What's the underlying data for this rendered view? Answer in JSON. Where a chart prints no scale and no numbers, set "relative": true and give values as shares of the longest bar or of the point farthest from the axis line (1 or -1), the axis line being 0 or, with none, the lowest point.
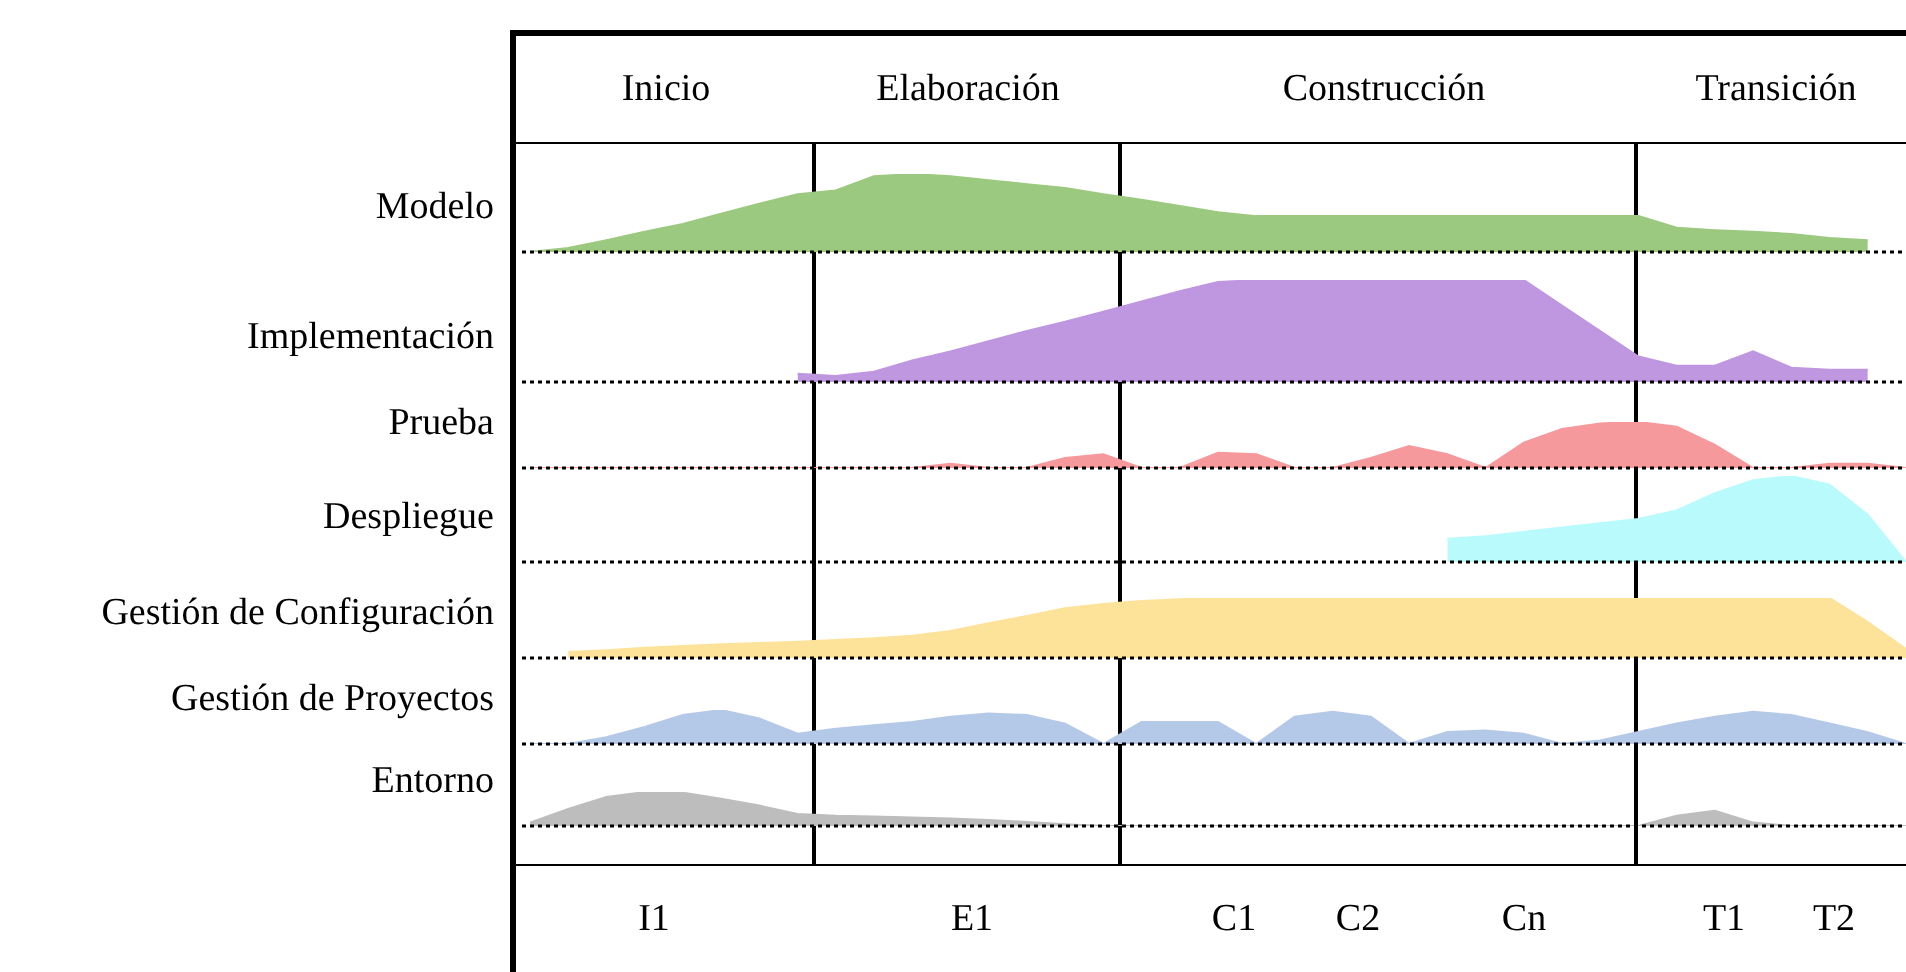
{
  "chart_data": [
    {
      "type": "other",
      "annotations": [
        "Inicio",
        "Elaboración",
        "Construcción",
        "Transición"
      ]
    },
    {
      "type": "area",
      "ylabel": "Modelo",
      "relative": true,
      "color": "#9bc97f",
      "categories": [
        null,
        null,
        null,
        null,
        null,
        null,
        null,
        null,
        null,
        null,
        null,
        null,
        null,
        null,
        null,
        null,
        null,
        null,
        null,
        null,
        null,
        null,
        null,
        null,
        null,
        null,
        null,
        null,
        null,
        null,
        null,
        null,
        null,
        null,
        null,
        null,
        null
      ],
      "values": [
        0,
        0.05,
        0.15,
        0.26,
        0.36,
        0.49,
        0.62,
        0.74,
        0.79,
        0.97,
        1,
        0.97,
        0.92,
        0.87,
        0.82,
        0.74,
        0.67,
        0.59,
        0.51,
        0.46,
        0.46,
        0.46,
        0.46,
        0.46,
        0.46,
        0.46,
        0.46,
        0.46,
        0.46,
        0.46,
        0.31,
        0.28,
        0.26,
        0.23,
        0.18,
        0.15,
        null
      ]
    },
    {
      "type": "area",
      "ylabel": "Implementación",
      "relative": true,
      "color": "#bf96e0",
      "categories": [
        null,
        null,
        null,
        null,
        null,
        null,
        null,
        null,
        null,
        null,
        null,
        null,
        null,
        null,
        null,
        null,
        null,
        null,
        null,
        null,
        null,
        null,
        null,
        null,
        null,
        null,
        null,
        null,
        null,
        null,
        null,
        null,
        null,
        null,
        null,
        null,
        null
      ],
      "values": [
        null,
        null,
        null,
        null,
        null,
        null,
        null,
        0.08,
        0.06,
        0.1,
        0.21,
        0.3,
        0.4,
        0.5,
        0.59,
        0.69,
        0.79,
        0.89,
        0.98,
        1,
        1,
        1,
        1,
        1,
        1,
        1,
        1,
        0.75,
        0.5,
        0.25,
        0.16,
        0.16,
        0.3,
        0.14,
        0.12,
        0.12,
        null
      ]
    },
    {
      "type": "area",
      "ylabel": "Prueba",
      "relative": true,
      "color": "#f6999c",
      "categories": [
        null,
        null,
        null,
        null,
        null,
        null,
        null,
        null,
        null,
        null,
        null,
        null,
        null,
        null,
        null,
        null,
        null,
        null,
        null,
        null,
        null,
        null,
        null,
        null,
        null,
        null,
        null,
        null,
        null,
        null,
        null,
        null,
        null,
        null,
        null,
        null,
        null
      ],
      "values": [
        0,
        0,
        0,
        0,
        0,
        0,
        0,
        0,
        0,
        0,
        0,
        0.09,
        0,
        0,
        0.22,
        0.3,
        0,
        0,
        0.33,
        0.3,
        0,
        0,
        0.22,
        0.48,
        0.3,
        0,
        0.55,
        0.85,
        0.97,
        1,
        0.9,
        0.5,
        0,
        0,
        0.09,
        0.09,
        0
      ]
    },
    {
      "type": "area",
      "ylabel": "Despliegue",
      "relative": true,
      "color": "#b9fbfc",
      "categories": [
        null,
        null,
        null,
        null,
        null,
        null,
        null,
        null,
        null,
        null,
        null,
        null,
        null,
        null,
        null,
        null,
        null,
        null,
        null,
        null,
        null,
        null,
        null,
        null,
        null,
        null,
        null,
        null,
        null,
        null,
        null,
        null,
        null,
        null,
        null,
        null,
        null
      ],
      "values": [
        null,
        null,
        null,
        null,
        null,
        null,
        null,
        null,
        null,
        null,
        null,
        null,
        null,
        null,
        null,
        null,
        null,
        null,
        null,
        null,
        null,
        null,
        null,
        null,
        0.27,
        0.3,
        0.35,
        0.4,
        0.45,
        0.5,
        0.6,
        0.8,
        0.95,
        1,
        0.9,
        0.55,
        0
      ]
    },
    {
      "type": "area",
      "ylabel": "Gestión de Configuración",
      "relative": true,
      "color": "#fde39a",
      "categories": [
        null,
        null,
        null,
        null,
        null,
        null,
        null,
        null,
        null,
        null,
        null,
        null,
        null,
        null,
        null,
        null,
        null,
        null,
        null,
        null,
        null,
        null,
        null,
        null,
        null,
        null,
        null,
        null,
        null,
        null,
        null,
        null,
        null,
        null,
        null,
        null,
        null
      ],
      "values": [
        null,
        0.1,
        0.13,
        0.17,
        0.2,
        0.23,
        0.25,
        0.27,
        0.3,
        0.33,
        0.37,
        0.45,
        0.58,
        0.7,
        0.83,
        0.9,
        0.95,
        0.98,
        1,
        1,
        1,
        1,
        1,
        1,
        1,
        1,
        1,
        1,
        1,
        1,
        1,
        1,
        1,
        1,
        1,
        0.6,
        0.15
      ]
    },
    {
      "type": "area",
      "ylabel": "Gestión de Proyectos",
      "relative": true,
      "color": "#b4c9e8",
      "categories": [
        null,
        null,
        null,
        null,
        null,
        null,
        null,
        null,
        null,
        null,
        null,
        null,
        null,
        null,
        null,
        null,
        null,
        null,
        null,
        null,
        null,
        null,
        null,
        null,
        null,
        null,
        null,
        null,
        null,
        null,
        null,
        null,
        null,
        null,
        null,
        null,
        null
      ],
      "values": [
        0,
        0,
        0.2,
        0.5,
        0.85,
        1,
        0.75,
        0.3,
        0.45,
        0.55,
        0.65,
        0.8,
        0.9,
        0.85,
        0.6,
        0,
        0.65,
        0.65,
        0.65,
        0,
        0.8,
        0.95,
        0.8,
        0,
        0.35,
        0.4,
        0.3,
        0,
        0.1,
        0.35,
        0.6,
        0.8,
        0.95,
        0.85,
        0.6,
        0.35,
        0
      ]
    },
    {
      "type": "area",
      "ylabel": "Entorno",
      "relative": true,
      "color": "#bdbdbd",
      "categories": [
        null,
        null,
        null,
        null,
        null,
        null,
        null,
        null,
        null,
        null,
        null,
        null,
        null,
        null,
        null,
        null,
        null,
        null,
        null,
        null,
        null,
        null,
        null,
        null,
        null,
        null,
        null,
        null,
        null,
        null,
        null,
        null,
        null,
        null,
        null,
        null,
        null
      ],
      "values": [
        0.1,
        0.5,
        0.85,
        1,
        0.98,
        0.8,
        0.6,
        0.35,
        0.3,
        0.28,
        0.25,
        0.22,
        0.18,
        0.12,
        0.05,
        0,
        0,
        0,
        0,
        0,
        0,
        0,
        0,
        0,
        0,
        0,
        0,
        0,
        0,
        0,
        0.3,
        0.45,
        0.1,
        0,
        0,
        0,
        0
      ]
    },
    {
      "type": "other",
      "annotations": [
        "I1",
        "E1",
        "C1",
        "C2",
        "Cn",
        "T1",
        "T2"
      ]
    }
  ]
}
